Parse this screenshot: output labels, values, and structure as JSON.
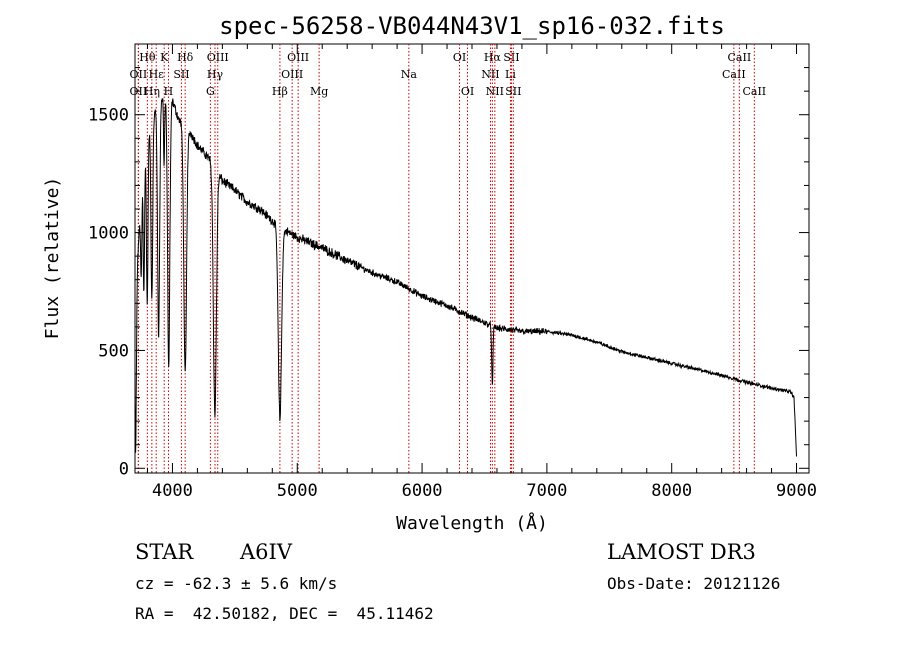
{
  "chart_data": {
    "type": "line",
    "title": "spec-56258-VB044N43V1_sp16-032.fits",
    "xlabel": "Wavelength (Å)",
    "ylabel": "Flux (relative)",
    "xlim": [
      3700,
      9100
    ],
    "ylim": [
      -20,
      1800
    ],
    "xticks": [
      4000,
      5000,
      6000,
      7000,
      8000,
      9000
    ],
    "xtick_labels": [
      "4000",
      "5000",
      "6000",
      "7000",
      "8000",
      "9000"
    ],
    "yticks": [
      0,
      500,
      1000,
      1500
    ],
    "ytick_labels": [
      "0",
      "500",
      "1000",
      "1500"
    ],
    "grid": false,
    "continuum": [
      [
        3700,
        850
      ],
      [
        3720,
        880
      ],
      [
        3760,
        1250
      ],
      [
        3800,
        1400
      ],
      [
        3850,
        1500
      ],
      [
        3900,
        1560
      ],
      [
        3950,
        1580
      ],
      [
        4000,
        1560
      ],
      [
        4050,
        1480
      ],
      [
        4100,
        1450
      ],
      [
        4150,
        1420
      ],
      [
        4200,
        1370
      ],
      [
        4300,
        1310
      ],
      [
        4400,
        1220
      ],
      [
        4500,
        1180
      ],
      [
        4600,
        1130
      ],
      [
        4700,
        1100
      ],
      [
        4800,
        1050
      ],
      [
        4900,
        1010
      ],
      [
        5000,
        980
      ],
      [
        5200,
        935
      ],
      [
        5400,
        880
      ],
      [
        5600,
        830
      ],
      [
        5800,
        790
      ],
      [
        6000,
        730
      ],
      [
        6200,
        690
      ],
      [
        6400,
        640
      ],
      [
        6600,
        595
      ],
      [
        6800,
        580
      ],
      [
        7000,
        580
      ],
      [
        7200,
        565
      ],
      [
        7400,
        535
      ],
      [
        7600,
        495
      ],
      [
        7800,
        470
      ],
      [
        8000,
        445
      ],
      [
        8200,
        420
      ],
      [
        8400,
        395
      ],
      [
        8600,
        365
      ],
      [
        8800,
        340
      ],
      [
        8950,
        325
      ],
      [
        8980,
        300
      ],
      [
        9000,
        50
      ]
    ],
    "absorption_features": [
      {
        "center": 3705,
        "depth": 800,
        "width": 6
      },
      {
        "center": 3750,
        "depth": 350,
        "width": 5
      },
      {
        "center": 3771,
        "depth": 550,
        "width": 5
      },
      {
        "center": 3798,
        "depth": 700,
        "width": 6
      },
      {
        "center": 3835,
        "depth": 750,
        "width": 7
      },
      {
        "center": 3889,
        "depth": 1000,
        "width": 8
      },
      {
        "center": 3933,
        "depth": 300,
        "width": 4
      },
      {
        "center": 3970,
        "depth": 1150,
        "width": 9
      },
      {
        "center": 4102,
        "depth": 1050,
        "width": 11
      },
      {
        "center": 4340,
        "depth": 1050,
        "width": 12
      },
      {
        "center": 4861,
        "depth": 820,
        "width": 13
      },
      {
        "center": 6563,
        "depth": 260,
        "width": 5
      }
    ],
    "line_markers": [
      {
        "wavelength": 3727,
        "label": "OII",
        "row": 1
      },
      {
        "wavelength": 3727,
        "label": "OII",
        "row": 2
      },
      {
        "wavelength": 3799,
        "label": "Hθ",
        "row": 0
      },
      {
        "wavelength": 3835,
        "label": "Hη",
        "row": 2
      },
      {
        "wavelength": 3870,
        "label": "Hε",
        "row": 1
      },
      {
        "wavelength": 3934,
        "label": "K",
        "row": 0
      },
      {
        "wavelength": 3968,
        "label": "H",
        "row": 2
      },
      {
        "wavelength": 4072,
        "label": "SII",
        "row": 1
      },
      {
        "wavelength": 4102,
        "label": "Hδ",
        "row": 0
      },
      {
        "wavelength": 4304,
        "label": "G",
        "row": 2
      },
      {
        "wavelength": 4341,
        "label": "Hγ",
        "row": 1
      },
      {
        "wavelength": 4363,
        "label": "OIII",
        "row": 0
      },
      {
        "wavelength": 4861,
        "label": "Hβ",
        "row": 2
      },
      {
        "wavelength": 4959,
        "label": "OIII",
        "row": 1
      },
      {
        "wavelength": 5007,
        "label": "OIII",
        "row": 0
      },
      {
        "wavelength": 5175,
        "label": "Mg",
        "row": 2
      },
      {
        "wavelength": 5894,
        "label": "Na",
        "row": 1
      },
      {
        "wavelength": 6300,
        "label": "OI",
        "row": 0
      },
      {
        "wavelength": 6364,
        "label": "OI",
        "row": 2
      },
      {
        "wavelength": 6548,
        "label": "NII",
        "row": 1
      },
      {
        "wavelength": 6563,
        "label": "Hα",
        "row": 0
      },
      {
        "wavelength": 6583,
        "label": "NII",
        "row": 2
      },
      {
        "wavelength": 6708,
        "label": "Li",
        "row": 1
      },
      {
        "wavelength": 6716,
        "label": "SII",
        "row": 0
      },
      {
        "wavelength": 6731,
        "label": "SII",
        "row": 2
      },
      {
        "wavelength": 8498,
        "label": "CaII",
        "row": 1
      },
      {
        "wavelength": 8542,
        "label": "CaII",
        "row": 0
      },
      {
        "wavelength": 8662,
        "label": "CaII",
        "row": 2
      }
    ],
    "marker_color": "#cc0000"
  },
  "info": {
    "class_label": "STAR",
    "subclass": "A6IV",
    "cz": "cz = -62.3 ± 5.6 km/s",
    "coords": "RA =  42.50182, DEC =  45.11462",
    "survey": "LAMOST DR3",
    "obs_date": "Obs-Date: 20121126"
  }
}
